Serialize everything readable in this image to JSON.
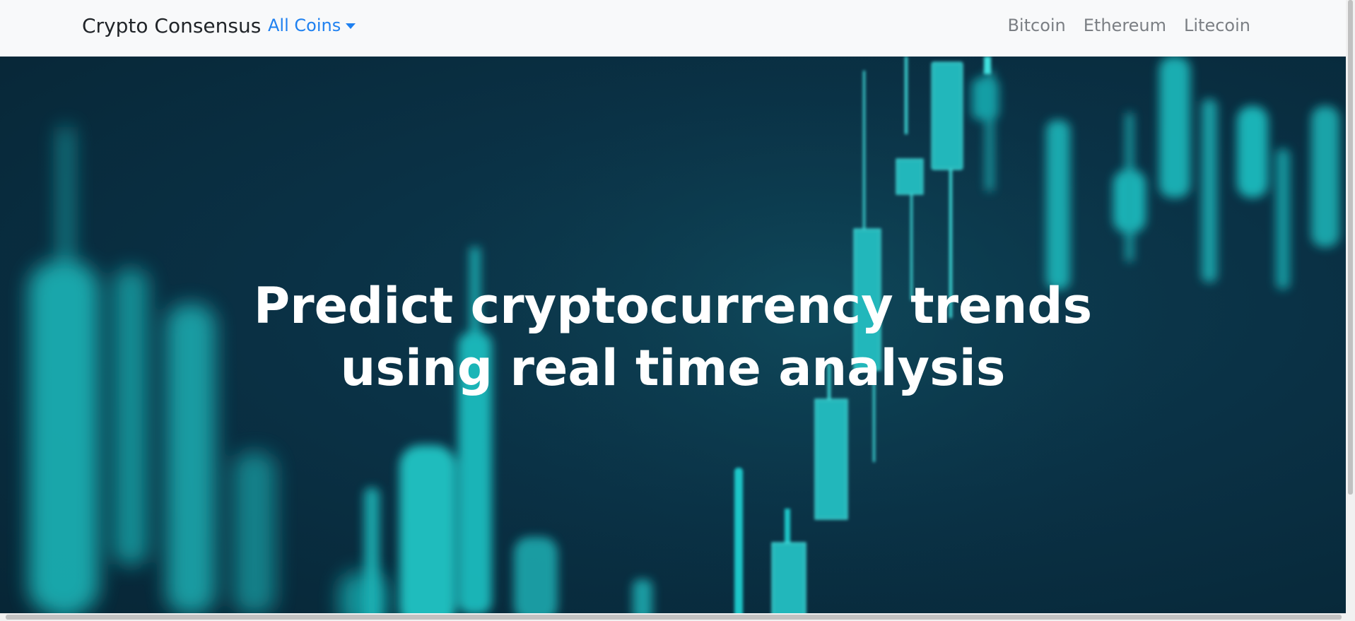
{
  "navbar": {
    "brand": "Crypto Consensus",
    "dropdown_label": "All Coins",
    "links": [
      "Bitcoin",
      "Ethereum",
      "Litecoin"
    ]
  },
  "hero": {
    "headline_line1": "Predict cryptocurrency trends",
    "headline_line2": "using real time analysis",
    "background": "candlestick-chart-background"
  },
  "colors": {
    "navbar_bg": "#f8f9fa",
    "brand_text": "#212529",
    "link_active": "#1e80f0",
    "link_muted": "#7b7f84",
    "hero_bg": "#0a3145",
    "candle": "#1fc6c8"
  }
}
